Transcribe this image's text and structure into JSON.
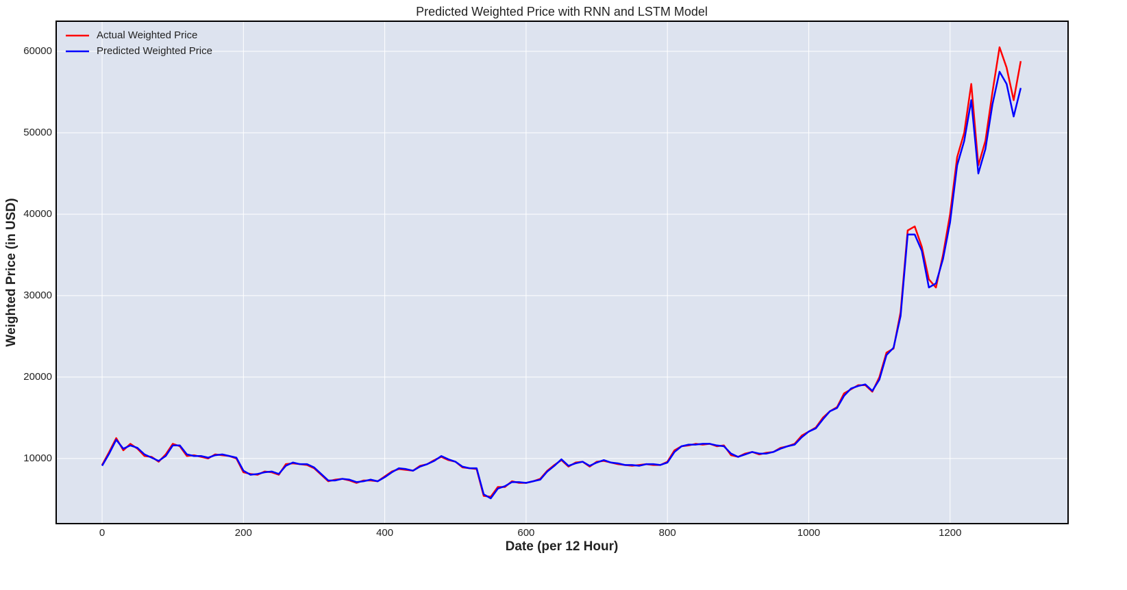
{
  "chart_data": {
    "type": "line",
    "title": "Predicted Weighted Price with RNN and LSTM Model",
    "x_label": "Date (per 12 Hour)",
    "y_label": "Weighted Price (in USD)",
    "x": [
      0,
      10,
      20,
      30,
      40,
      50,
      60,
      70,
      80,
      90,
      100,
      110,
      120,
      130,
      140,
      150,
      160,
      170,
      180,
      190,
      200,
      210,
      220,
      230,
      240,
      250,
      260,
      270,
      280,
      290,
      300,
      310,
      320,
      330,
      340,
      350,
      360,
      370,
      380,
      390,
      400,
      410,
      420,
      430,
      440,
      450,
      460,
      470,
      480,
      490,
      500,
      510,
      520,
      530,
      540,
      550,
      560,
      570,
      580,
      590,
      600,
      610,
      620,
      630,
      640,
      650,
      660,
      670,
      680,
      690,
      700,
      710,
      720,
      730,
      740,
      750,
      760,
      770,
      780,
      790,
      800,
      810,
      820,
      830,
      840,
      850,
      860,
      870,
      880,
      890,
      900,
      910,
      920,
      930,
      940,
      950,
      960,
      970,
      980,
      990,
      1000,
      1010,
      1020,
      1030,
      1040,
      1050,
      1060,
      1070,
      1080,
      1090,
      1100,
      1110,
      1120,
      1130,
      1140,
      1150,
      1160,
      1170,
      1180,
      1190,
      1200,
      1210,
      1220,
      1230,
      1240,
      1250,
      1260,
      1270,
      1280,
      1290,
      1300
    ],
    "series": [
      {
        "name": "Actual Weighted Price",
        "color": "#ff0000",
        "values": [
          9200,
          10800,
          12500,
          11000,
          11800,
          11200,
          10300,
          10200,
          9600,
          10500,
          11800,
          11500,
          10300,
          10400,
          10200,
          10000,
          10500,
          10400,
          10300,
          10000,
          8300,
          8100,
          8000,
          8400,
          8300,
          8000,
          9300,
          9400,
          9300,
          9200,
          8800,
          8000,
          7200,
          7400,
          7500,
          7300,
          7000,
          7300,
          7300,
          7200,
          7800,
          8400,
          8700,
          8600,
          8500,
          9100,
          9300,
          9800,
          10200,
          9800,
          9600,
          8900,
          8800,
          8700,
          5400,
          5300,
          6500,
          6500,
          7200,
          7000,
          7000,
          7200,
          7500,
          8500,
          9200,
          9800,
          9000,
          9500,
          9600,
          9000,
          9600,
          9700,
          9500,
          9300,
          9200,
          9100,
          9200,
          9300,
          9200,
          9200,
          9600,
          11000,
          11500,
          11600,
          11800,
          11700,
          11800,
          11500,
          11600,
          10400,
          10200,
          10600,
          10800,
          10500,
          10700,
          10800,
          11300,
          11500,
          11800,
          12800,
          13300,
          13800,
          15000,
          15800,
          16300,
          18000,
          18500,
          19000,
          19000,
          18200,
          20000,
          23000,
          23500,
          28000,
          38000,
          38500,
          36000,
          32000,
          31000,
          35000,
          40000,
          47000,
          50000,
          56000,
          46000,
          49000,
          55000,
          60500,
          58000,
          54000,
          58800
        ]
      },
      {
        "name": "Predicted Weighted Price",
        "color": "#0000ff",
        "values": [
          9100,
          10600,
          12300,
          11200,
          11600,
          11300,
          10500,
          10100,
          9700,
          10300,
          11600,
          11600,
          10500,
          10300,
          10300,
          10100,
          10400,
          10500,
          10300,
          10100,
          8500,
          8000,
          8100,
          8300,
          8400,
          8100,
          9100,
          9500,
          9300,
          9300,
          8900,
          8100,
          7300,
          7300,
          7500,
          7400,
          7100,
          7200,
          7400,
          7200,
          7700,
          8300,
          8800,
          8700,
          8500,
          9000,
          9300,
          9700,
          10300,
          9900,
          9600,
          9000,
          8800,
          8800,
          5600,
          5100,
          6300,
          6600,
          7100,
          7100,
          7000,
          7200,
          7400,
          8400,
          9100,
          9900,
          9100,
          9400,
          9600,
          9100,
          9500,
          9800,
          9500,
          9400,
          9200,
          9200,
          9100,
          9300,
          9300,
          9200,
          9500,
          10800,
          11500,
          11700,
          11700,
          11800,
          11800,
          11600,
          11500,
          10600,
          10200,
          10500,
          10800,
          10600,
          10600,
          10800,
          11200,
          11500,
          11700,
          12600,
          13300,
          13700,
          14800,
          15800,
          16200,
          17700,
          18600,
          18900,
          19100,
          18300,
          19700,
          22700,
          23600,
          27500,
          37500,
          37500,
          35500,
          31000,
          31500,
          34500,
          39000,
          46000,
          49000,
          54000,
          45000,
          48000,
          53500,
          57500,
          56000,
          52000,
          55500
        ]
      }
    ],
    "xlim": [
      -65,
      1367
    ],
    "ylim": [
      2000,
      63700
    ],
    "xticks": [
      0,
      200,
      400,
      600,
      800,
      1000,
      1200
    ],
    "yticks": [
      10000,
      20000,
      30000,
      40000,
      50000,
      60000
    ],
    "grid": true,
    "legend": "upper left"
  }
}
